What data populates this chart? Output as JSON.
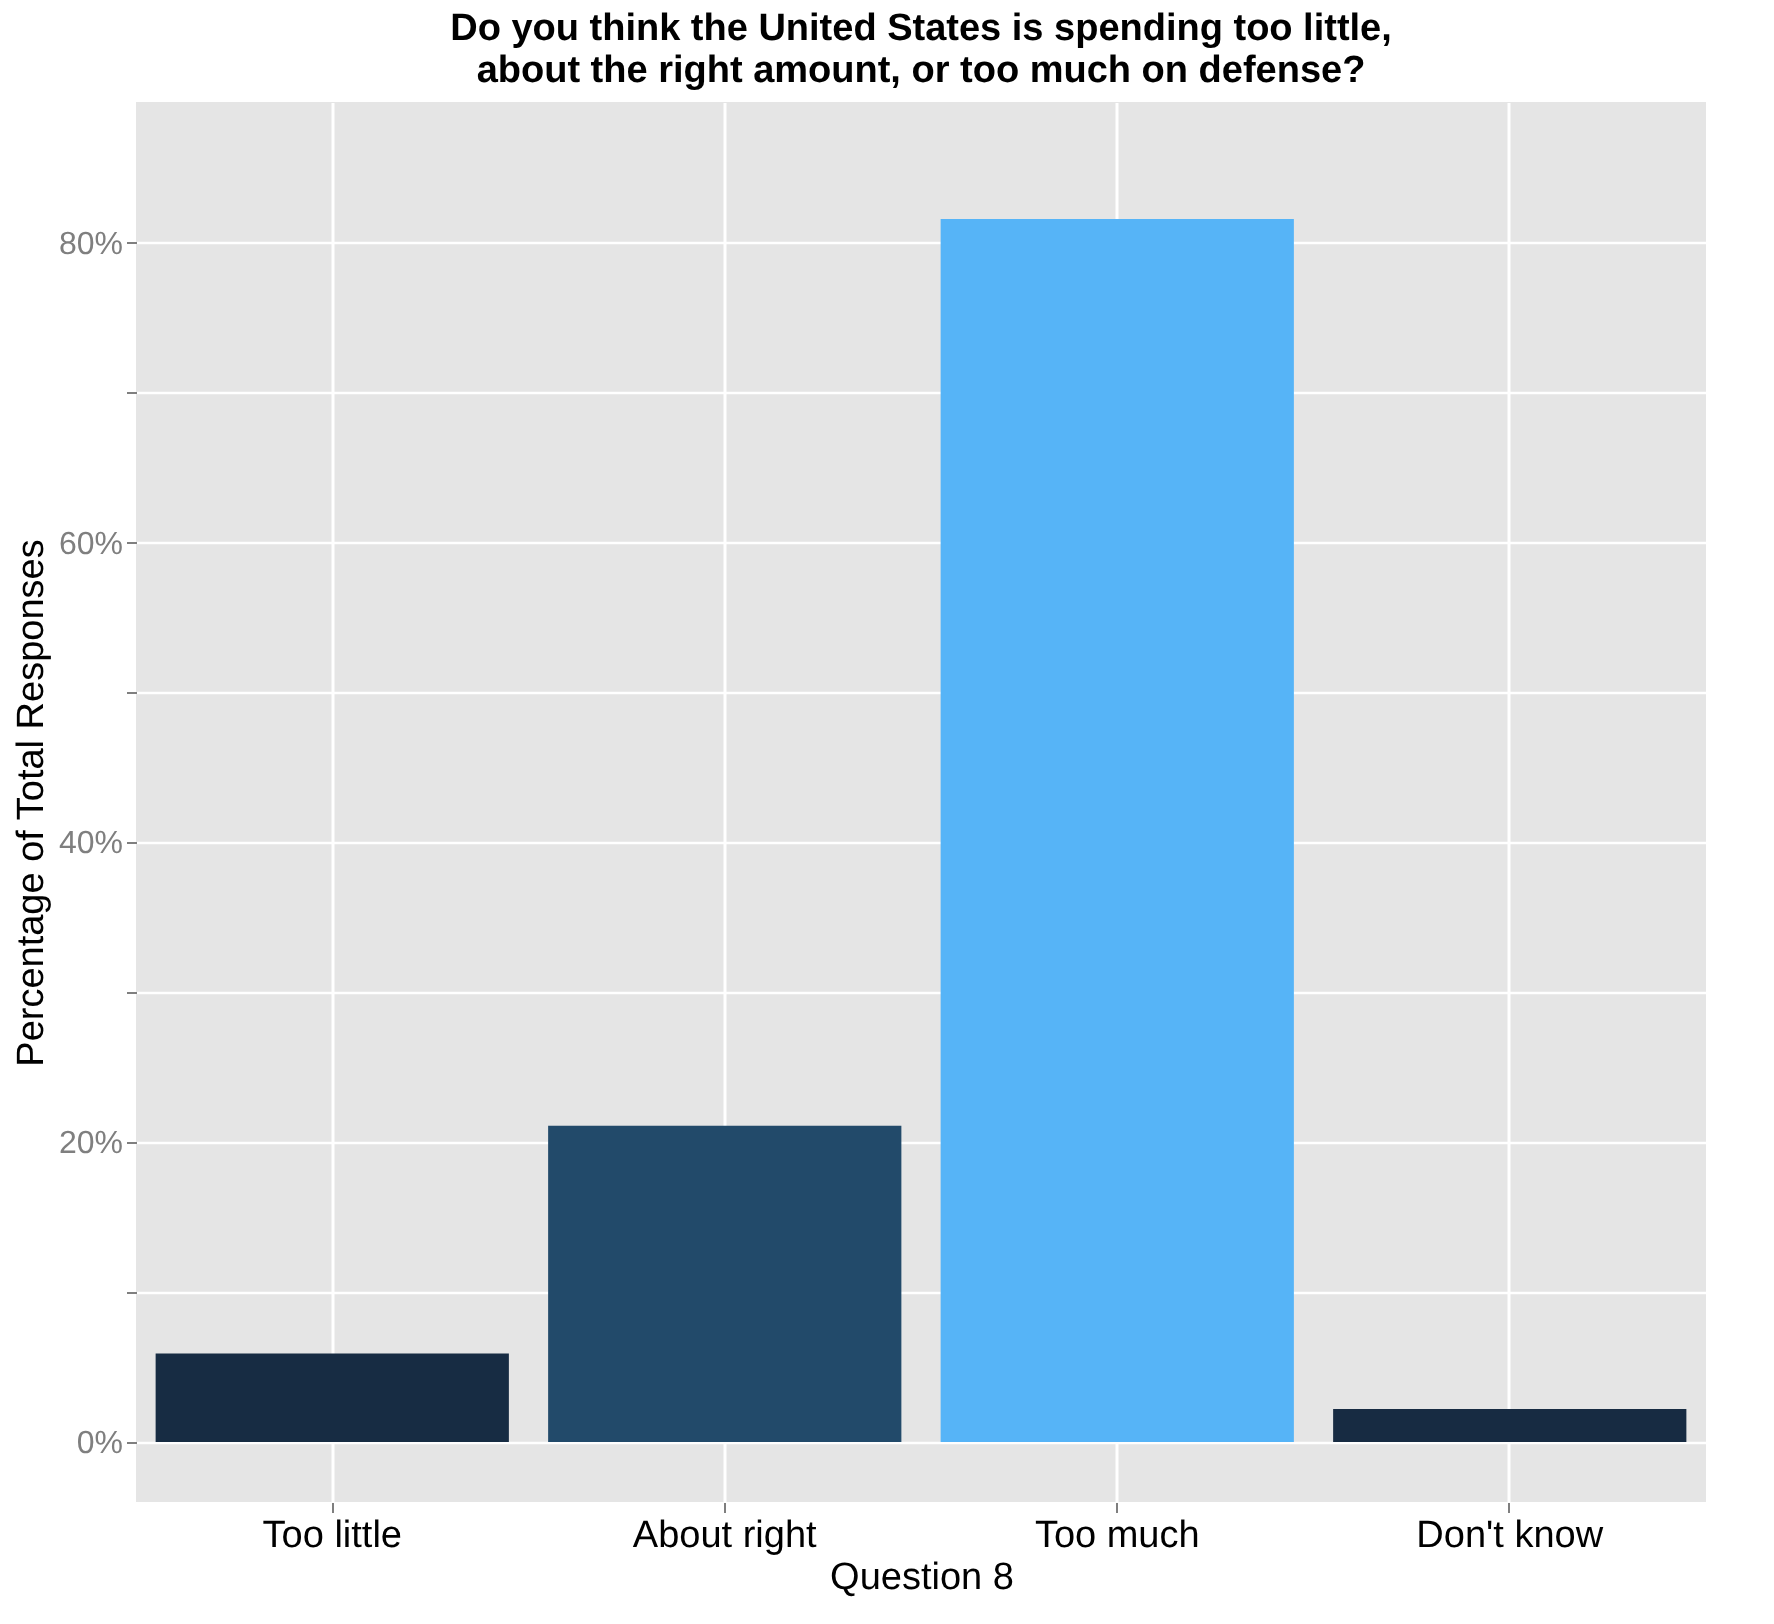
{
  "chart_data": {
    "type": "bar",
    "title": "Do you think the United States is spending too little,\nabout the right amount, or too much on defense?",
    "xlabel": "Question 8",
    "ylabel": "Percentage of Total Responses",
    "categories": [
      "Too little",
      "About right",
      "Too much",
      "Don't know"
    ],
    "values": [
      5.9,
      21.1,
      81.6,
      2.2
    ],
    "colors": [
      "#172c43",
      "#224a6a",
      "#56b4f7",
      "#172b42"
    ],
    "ylim": [
      -4,
      89.4
    ],
    "yticks": [
      {
        "value": 0,
        "label": "0%"
      },
      {
        "value": 10,
        "label": null
      },
      {
        "value": 20,
        "label": "20%"
      },
      {
        "value": 30,
        "label": null
      },
      {
        "value": 40,
        "label": "40%"
      },
      {
        "value": 50,
        "label": null
      },
      {
        "value": 60,
        "label": "60%"
      },
      {
        "value": 70,
        "label": null
      },
      {
        "value": 80,
        "label": "80%"
      }
    ],
    "grid": true,
    "legend": false
  }
}
